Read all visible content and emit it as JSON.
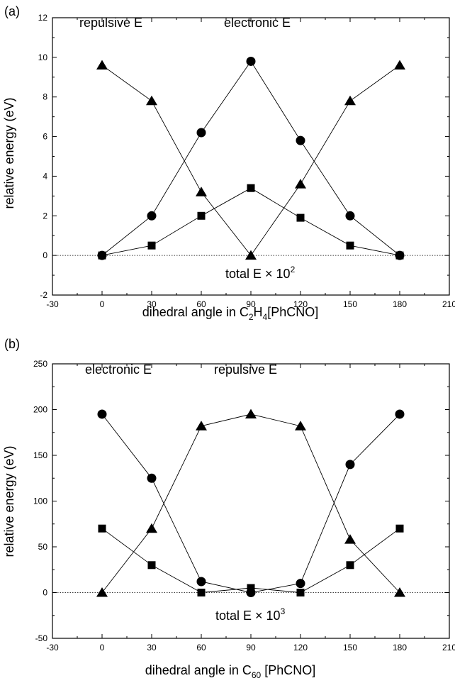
{
  "chart_data": [
    {
      "type": "line",
      "panel_label": "(a)",
      "xlabel": {
        "text": "dihedral angle in C",
        "sub1": "2",
        "mid": "H",
        "sub2": "4",
        "tail": "[PhCNO]"
      },
      "ylabel": "relative energy (eV)",
      "xlim": [
        -30,
        210
      ],
      "ylim": [
        -2,
        12
      ],
      "xticks": [
        -30,
        0,
        30,
        60,
        90,
        120,
        150,
        180,
        210
      ],
      "yticks": [
        -2,
        0,
        2,
        4,
        6,
        8,
        10,
        12
      ],
      "zero_line": true,
      "annotations": {
        "series_a": "repulsive E",
        "series_b": "electronic E",
        "total_base": "total E × 10",
        "total_exp": "2"
      },
      "series": [
        {
          "marker": "triangle",
          "x": [
            0,
            30,
            60,
            90,
            120,
            150,
            180
          ],
          "values": [
            9.6,
            7.8,
            3.2,
            0.0,
            3.6,
            7.8,
            9.6
          ]
        },
        {
          "marker": "circle",
          "x": [
            0,
            30,
            60,
            90,
            120,
            150,
            180
          ],
          "values": [
            0.0,
            2.0,
            6.2,
            9.8,
            5.8,
            2.0,
            0.0
          ]
        },
        {
          "marker": "square",
          "x": [
            0,
            30,
            60,
            90,
            120,
            150,
            180
          ],
          "values": [
            0.0,
            0.5,
            2.0,
            3.4,
            1.9,
            0.5,
            0.0
          ]
        }
      ]
    },
    {
      "type": "line",
      "panel_label": "(b)",
      "xlabel": {
        "text": "dihedral angle in C",
        "sub1": "60",
        "mid": "",
        "sub2": "",
        "tail": " [PhCNO]"
      },
      "ylabel": "relative energy (eV)",
      "xlim": [
        -30,
        210
      ],
      "ylim": [
        -50,
        250
      ],
      "xticks": [
        -30,
        0,
        30,
        60,
        90,
        120,
        150,
        180,
        210
      ],
      "yticks": [
        -50,
        0,
        50,
        100,
        150,
        200,
        250
      ],
      "zero_line": true,
      "annotations": {
        "series_a": "electronic E",
        "series_b": "repulsive E",
        "total_base": "total E × 10",
        "total_exp": "3"
      },
      "series": [
        {
          "marker": "circle",
          "x": [
            0,
            30,
            60,
            90,
            120,
            150,
            180
          ],
          "values": [
            195,
            125,
            12,
            0,
            10,
            140,
            195
          ]
        },
        {
          "marker": "triangle",
          "x": [
            0,
            30,
            60,
            90,
            120,
            150,
            180
          ],
          "values": [
            0,
            70,
            182,
            195,
            182,
            58,
            0
          ]
        },
        {
          "marker": "square",
          "x": [
            0,
            30,
            60,
            90,
            120,
            150,
            180
          ],
          "values": [
            70,
            30,
            0,
            5,
            0,
            30,
            70
          ]
        }
      ]
    }
  ]
}
